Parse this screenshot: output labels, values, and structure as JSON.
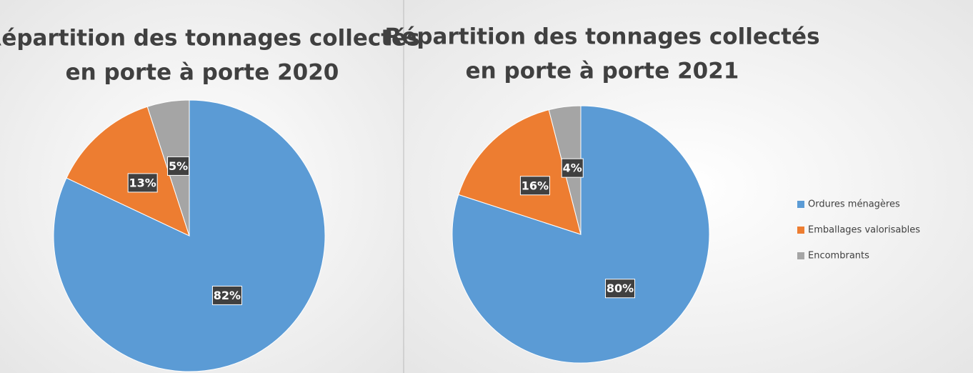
{
  "chart_data": [
    {
      "type": "pie",
      "title": [
        "Répartition des tonnages collectés",
        "en porte à porte 2020"
      ],
      "values": [
        82,
        13,
        5
      ],
      "value_labels": [
        "82%",
        "13%",
        "5%"
      ],
      "colors": [
        "#5b9bd5",
        "#ed7d31",
        "#a5a5a5"
      ],
      "legend": false
    },
    {
      "type": "pie",
      "title": [
        "Répartition des tonnages collectés",
        "en porte à porte 2021"
      ],
      "categories": [
        "Ordures ménagères",
        "Emballages valorisables",
        "Encombrants"
      ],
      "values": [
        80,
        16,
        4
      ],
      "value_labels": [
        "80%",
        "16%",
        "4%"
      ],
      "colors": [
        "#5b9bd5",
        "#ed7d31",
        "#a5a5a5"
      ],
      "legend": "right"
    }
  ]
}
